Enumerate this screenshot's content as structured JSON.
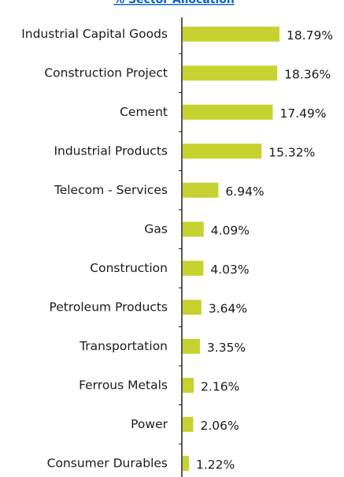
{
  "chart_data": {
    "type": "bar",
    "orientation": "horizontal",
    "title": "% Sector Allocation",
    "categories": [
      "Industrial Capital Goods",
      "Construction Project",
      "Cement",
      "Industrial Products",
      "Telecom - Services",
      "Gas",
      "Construction",
      "Petroleum Products",
      "Transportation",
      "Ferrous Metals",
      "Power",
      "Consumer Durables"
    ],
    "values": [
      18.79,
      18.36,
      17.49,
      15.32,
      6.94,
      4.09,
      4.03,
      3.64,
      3.35,
      2.16,
      2.06,
      1.22
    ],
    "value_labels": [
      "18.79%",
      "18.36%",
      "17.49%",
      "15.32%",
      "6.94%",
      "4.09%",
      "4.03%",
      "3.64%",
      "3.35%",
      "2.16%",
      "2.06%",
      "1.22%"
    ],
    "color": "#c6d230"
  }
}
